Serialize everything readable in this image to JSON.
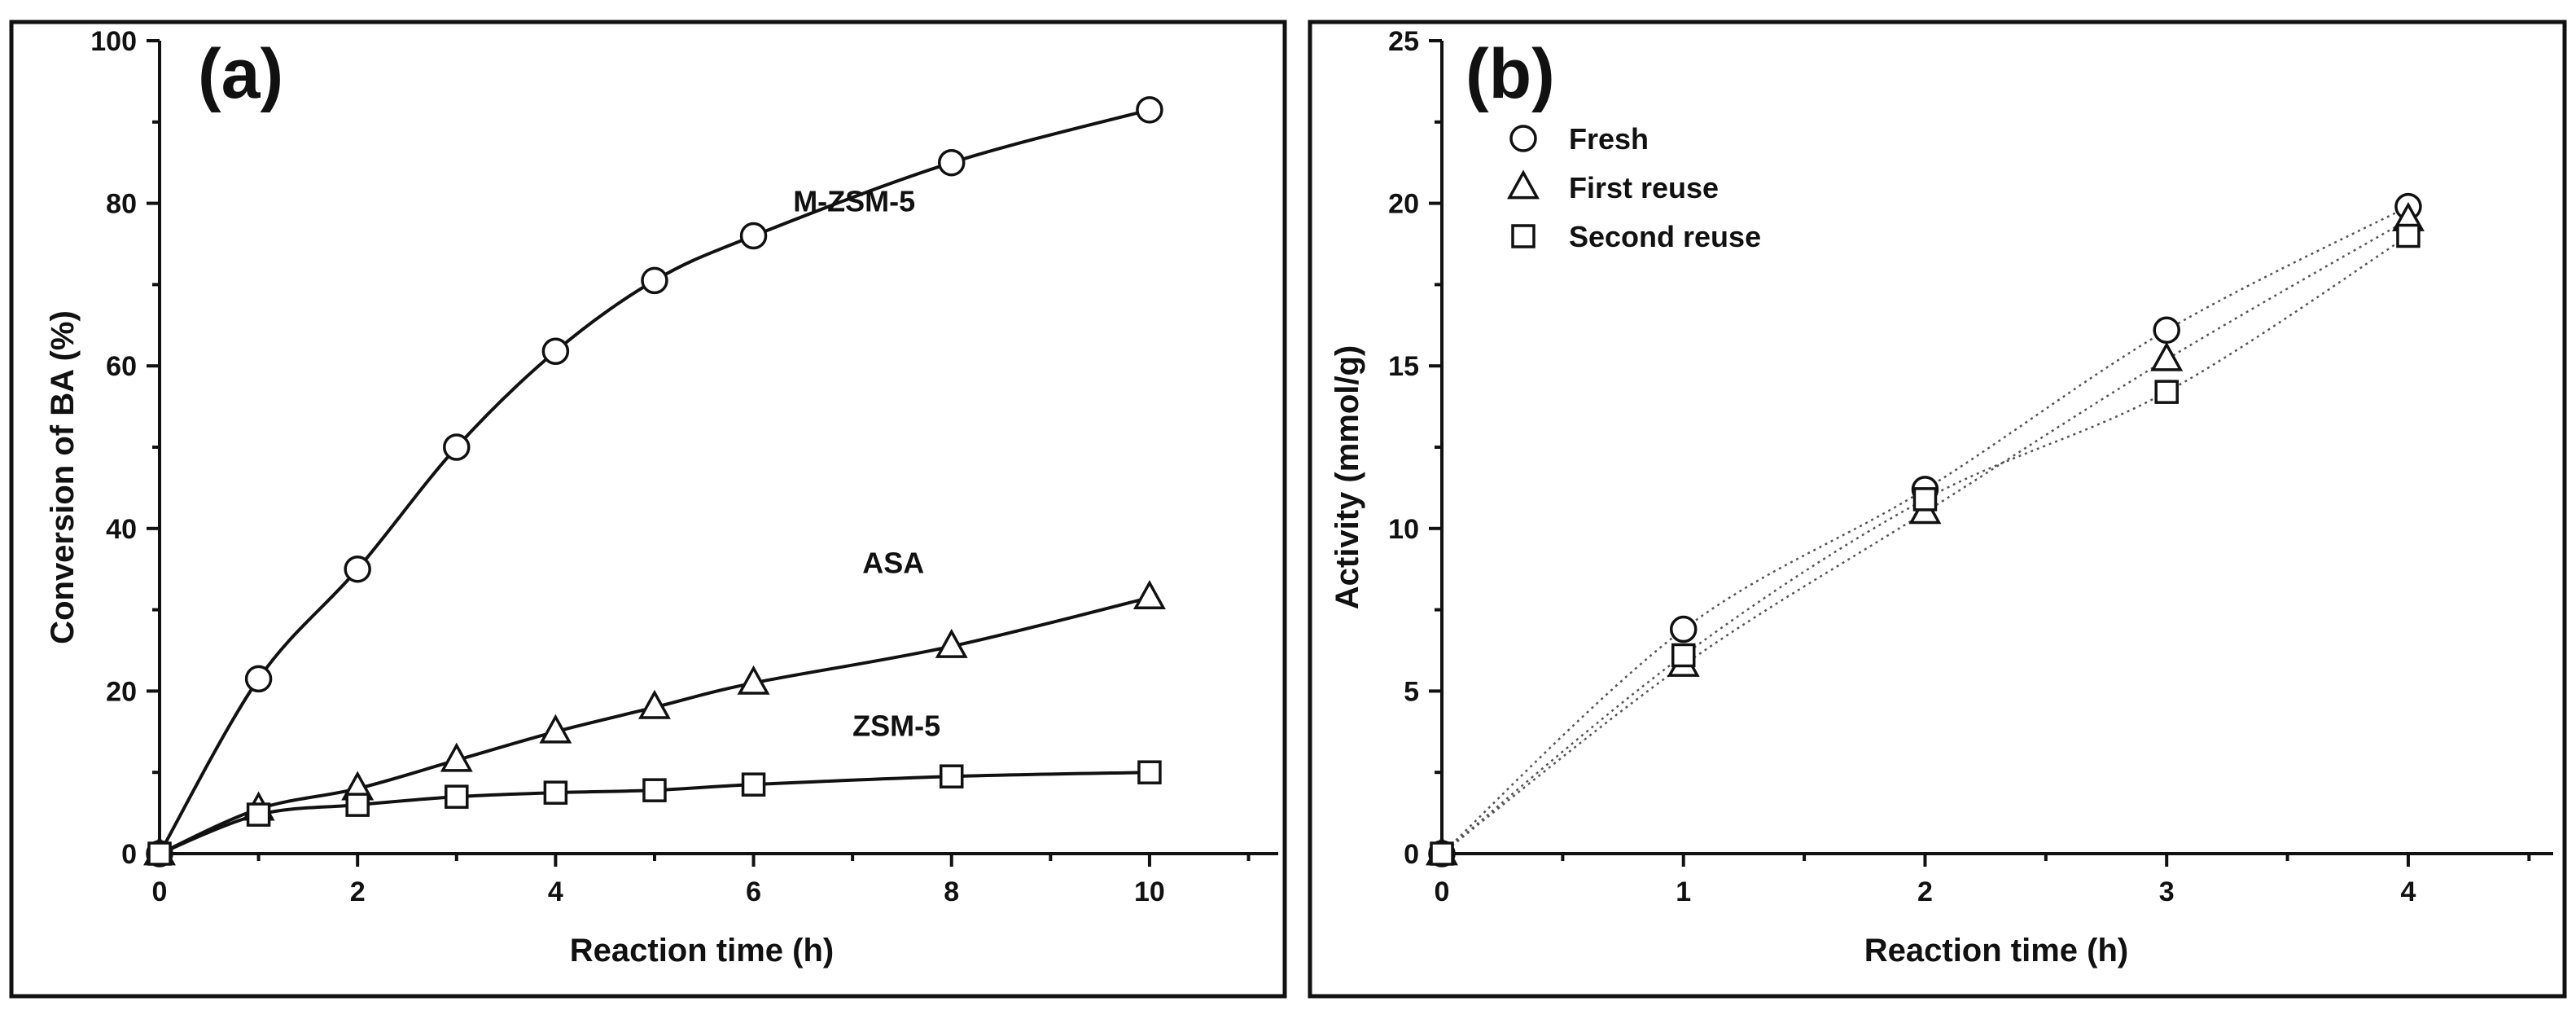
{
  "chart_data": [
    {
      "type": "line",
      "panel_label": "(a)",
      "xlabel": "Reaction time (h)",
      "ylabel": "Conversion of BA (%)",
      "xlim": [
        0,
        11.3
      ],
      "ylim": [
        0,
        100
      ],
      "xticks": [
        0,
        2,
        4,
        6,
        8,
        10
      ],
      "yticks": [
        0,
        20,
        40,
        60,
        80,
        100
      ],
      "series": [
        {
          "name": "M-ZSM-5",
          "marker": "circle",
          "line": "solid",
          "label_at": [
            6.4,
            79
          ],
          "x": [
            0,
            1,
            2,
            3,
            4,
            5,
            6,
            8,
            10
          ],
          "y": [
            0,
            21.5,
            35,
            50,
            61.8,
            70.5,
            76,
            85,
            91.5
          ]
        },
        {
          "name": "ASA",
          "marker": "triangle",
          "line": "solid",
          "label_at": [
            7.1,
            34.5
          ],
          "x": [
            0,
            1,
            2,
            3,
            4,
            5,
            6,
            8,
            10
          ],
          "y": [
            0,
            5.5,
            8,
            11.5,
            15,
            18,
            21,
            25.5,
            31.5
          ]
        },
        {
          "name": "ZSM-5",
          "marker": "square",
          "line": "solid",
          "label_at": [
            7.0,
            14.5
          ],
          "x": [
            0,
            1,
            2,
            3,
            4,
            5,
            6,
            8,
            10
          ],
          "y": [
            0,
            4.8,
            6,
            7,
            7.5,
            7.8,
            8.5,
            9.5,
            10
          ]
        }
      ]
    },
    {
      "type": "line",
      "panel_label": "(b)",
      "xlabel": "Reaction time (h)",
      "ylabel": "Activity (mmol/g)",
      "xlim": [
        0,
        4.6
      ],
      "ylim": [
        0,
        25
      ],
      "xticks": [
        0,
        1,
        2,
        3,
        4
      ],
      "yticks": [
        0,
        5,
        10,
        15,
        20,
        25
      ],
      "legend_position": "top-left",
      "series": [
        {
          "name": "Fresh",
          "marker": "circle",
          "line": "dotted",
          "x": [
            0,
            1,
            2,
            3,
            4
          ],
          "y": [
            0,
            6.9,
            11.2,
            16.1,
            19.9
          ]
        },
        {
          "name": "First reuse",
          "marker": "triangle",
          "line": "dotted",
          "x": [
            0,
            1,
            2,
            3,
            4
          ],
          "y": [
            0,
            5.8,
            10.5,
            15.2,
            19.5
          ]
        },
        {
          "name": "Second reuse",
          "marker": "square",
          "line": "dotted",
          "x": [
            0,
            1,
            2,
            3,
            4
          ],
          "y": [
            0,
            6.1,
            10.9,
            14.2,
            19.0
          ]
        }
      ]
    }
  ]
}
